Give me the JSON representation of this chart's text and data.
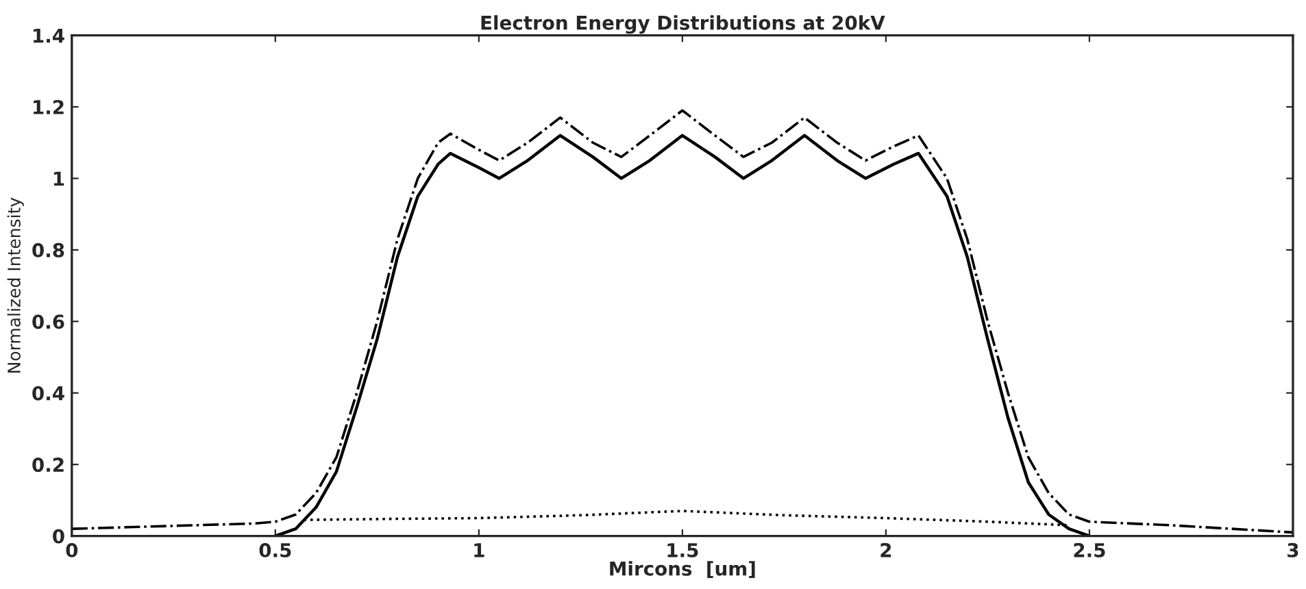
{
  "chart_data": {
    "type": "line",
    "title": "Electron Energy Distributions at 20kV",
    "xlabel": "Mircons  [um]",
    "ylabel": "Normalized Intensity",
    "xlim": [
      0,
      3
    ],
    "ylim": [
      0,
      1.4
    ],
    "xticks": [
      0,
      0.5,
      1,
      1.5,
      2,
      2.5,
      3
    ],
    "yticks": [
      0,
      0.2,
      0.4,
      0.6,
      0.8,
      1,
      1.2,
      1.4
    ],
    "grid": false,
    "legend": false,
    "marker": "none",
    "series": [
      {
        "color": "#000000",
        "line_style": "solid",
        "x": [
          0.5,
          0.55,
          0.6,
          0.65,
          0.7,
          0.75,
          0.8,
          0.85,
          0.9,
          0.93,
          1.0,
          1.05,
          1.12,
          1.2,
          1.28,
          1.35,
          1.42,
          1.5,
          1.58,
          1.65,
          1.72,
          1.8,
          1.88,
          1.95,
          2.02,
          2.08,
          2.15,
          2.2,
          2.25,
          2.3,
          2.35,
          2.4,
          2.45,
          2.5
        ],
        "values": [
          0,
          0.02,
          0.08,
          0.18,
          0.36,
          0.55,
          0.78,
          0.95,
          1.04,
          1.07,
          1.03,
          1.0,
          1.05,
          1.12,
          1.06,
          1.0,
          1.05,
          1.12,
          1.06,
          1.0,
          1.05,
          1.12,
          1.05,
          1.0,
          1.04,
          1.07,
          0.95,
          0.78,
          0.55,
          0.33,
          0.15,
          0.06,
          0.02,
          0
        ]
      },
      {
        "color": "#000000",
        "line_style": "dashdot",
        "x": [
          0,
          0.15,
          0.3,
          0.45,
          0.5,
          0.55,
          0.6,
          0.65,
          0.7,
          0.75,
          0.8,
          0.85,
          0.9,
          0.93,
          1.0,
          1.05,
          1.12,
          1.2,
          1.28,
          1.35,
          1.42,
          1.5,
          1.58,
          1.65,
          1.72,
          1.8,
          1.88,
          1.95,
          2.02,
          2.08,
          2.15,
          2.2,
          2.25,
          2.3,
          2.35,
          2.4,
          2.45,
          2.5,
          2.7,
          2.85,
          3.0
        ],
        "values": [
          0.02,
          0.025,
          0.03,
          0.035,
          0.04,
          0.06,
          0.12,
          0.22,
          0.4,
          0.6,
          0.83,
          1.0,
          1.1,
          1.125,
          1.08,
          1.05,
          1.1,
          1.17,
          1.1,
          1.06,
          1.12,
          1.19,
          1.12,
          1.06,
          1.1,
          1.17,
          1.1,
          1.05,
          1.09,
          1.12,
          1.0,
          0.83,
          0.6,
          0.4,
          0.22,
          0.12,
          0.06,
          0.04,
          0.03,
          0.02,
          0.01
        ]
      },
      {
        "color": "#000000",
        "line_style": "dotted",
        "x": [
          0.57,
          0.8,
          1.0,
          1.25,
          1.5,
          1.75,
          2.0,
          2.25,
          2.45
        ],
        "values": [
          0.045,
          0.048,
          0.05,
          0.058,
          0.07,
          0.058,
          0.05,
          0.04,
          0.03
        ]
      }
    ]
  }
}
